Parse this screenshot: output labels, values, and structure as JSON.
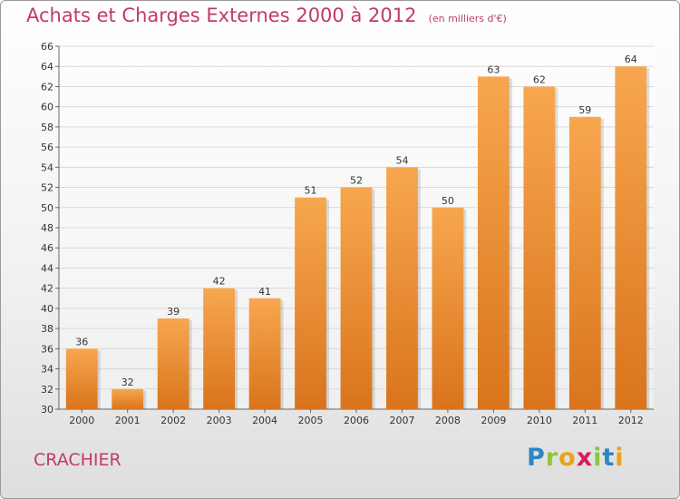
{
  "header": {
    "title": "Achats et Charges Externes 2000 à 2012",
    "subtitle": "(en milliers d'€)"
  },
  "footer": {
    "commune": "CRACHIER",
    "brand": "Proxiti",
    "brand_colors": [
      "#2e86c1",
      "#8cc63f",
      "#e8a317",
      "#d81b60",
      "#8cc63f",
      "#2e86c1",
      "#e8a317"
    ]
  },
  "chart_data": {
    "type": "bar",
    "title": "Achats et Charges Externes 2000 à 2012",
    "subtitle": "(en milliers d'€)",
    "xlabel": "",
    "ylabel": "",
    "categories": [
      "2000",
      "2001",
      "2002",
      "2003",
      "2004",
      "2005",
      "2006",
      "2007",
      "2008",
      "2009",
      "2010",
      "2011",
      "2012"
    ],
    "values": [
      36,
      32,
      39,
      42,
      41,
      51,
      52,
      54,
      50,
      63,
      62,
      59,
      64
    ],
    "ylim": [
      30,
      66
    ],
    "yticks": [
      30,
      32,
      34,
      36,
      38,
      40,
      42,
      44,
      46,
      48,
      50,
      52,
      54,
      56,
      58,
      60,
      62,
      64,
      66
    ],
    "grid": true,
    "bar_color_top": "#f7a74f",
    "bar_color_bottom": "#d9741c",
    "title_color": "#c03a6a"
  }
}
